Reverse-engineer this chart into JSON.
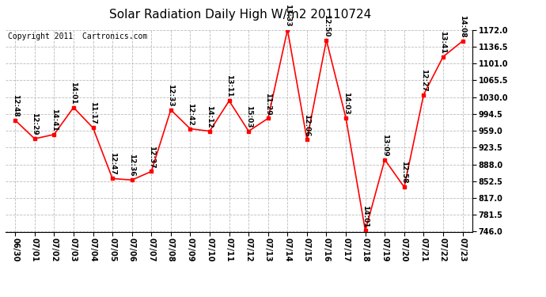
{
  "title": "Solar Radiation Daily High W/m2 20110724",
  "copyright": "Copyright 2011  Cartronics.com",
  "dates": [
    "06/30",
    "07/01",
    "07/02",
    "07/03",
    "07/04",
    "07/05",
    "07/06",
    "07/07",
    "07/08",
    "07/09",
    "07/10",
    "07/11",
    "07/12",
    "07/13",
    "07/14",
    "07/15",
    "07/16",
    "07/17",
    "07/18",
    "07/19",
    "07/20",
    "07/21",
    "07/22",
    "07/23"
  ],
  "values": [
    981,
    942,
    951,
    1008,
    965,
    858,
    855,
    873,
    1003,
    963,
    958,
    1022,
    958,
    985,
    1172,
    940,
    1150,
    986,
    748,
    898,
    840,
    1035,
    1115,
    1148
  ],
  "labels": [
    "12:48",
    "12:29",
    "14:41",
    "14:01",
    "11:17",
    "12:47",
    "12:36",
    "12:37",
    "12:33",
    "12:42",
    "14:12",
    "13:11",
    "15:03",
    "11:29",
    "13:33",
    "12:06",
    "12:50",
    "14:03",
    "14:01",
    "13:09",
    "12:58",
    "12:27",
    "13:41",
    "14:08"
  ],
  "ylim": [
    746,
    1172
  ],
  "yticks": [
    746.0,
    781.5,
    817.0,
    852.5,
    888.0,
    923.5,
    959.0,
    994.5,
    1030.0,
    1065.5,
    1101.0,
    1136.5,
    1172.0
  ],
  "line_color": "red",
  "marker_color": "red",
  "bg_color": "white",
  "grid_color": "#bbbbbb",
  "title_fontsize": 11,
  "label_fontsize": 6.5,
  "copyright_fontsize": 7,
  "tick_fontsize": 7
}
